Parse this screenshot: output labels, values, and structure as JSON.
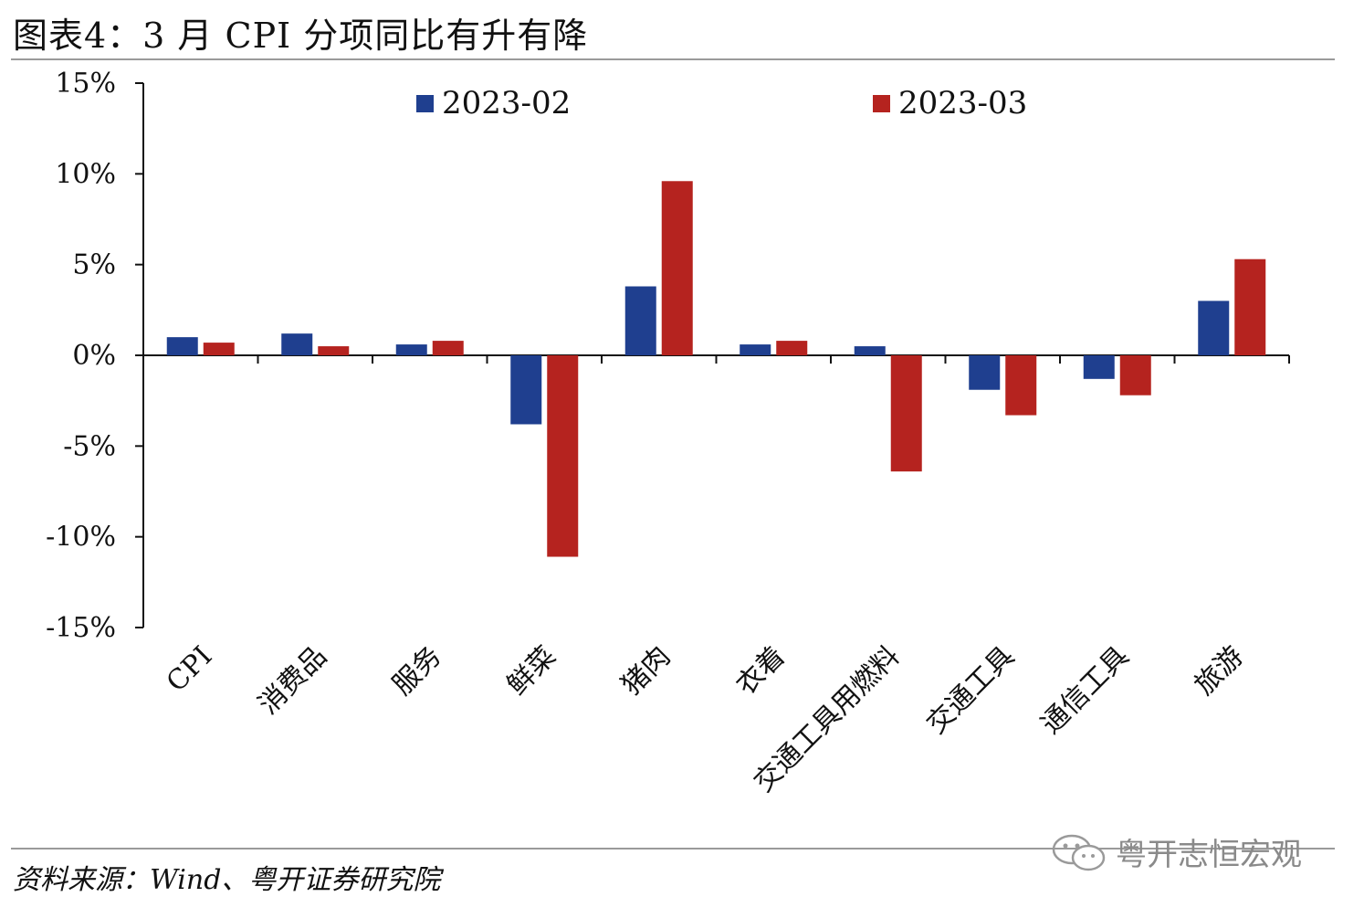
{
  "header": {
    "title": "图表4：3 月 CPI 分项同比有升有降"
  },
  "footer": {
    "source": "资料来源：Wind、粤开证券研究院"
  },
  "watermark": {
    "text": "粤开志恒宏观",
    "icon": "wechat-icon"
  },
  "colors": {
    "series_1": "#1f3f8f",
    "series_2": "#b5231f",
    "axis": "#111111",
    "rule": "#9a9a9a"
  },
  "chart_data": {
    "type": "bar",
    "title": "3 月 CPI 分项同比有升有降",
    "xlabel": "",
    "ylabel": "",
    "ylim": [
      -15,
      15
    ],
    "yticks": [
      15,
      10,
      5,
      0,
      -5,
      -10,
      -15
    ],
    "ytick_labels": [
      "15%",
      "10%",
      "5%",
      "0%",
      "-5%",
      "-10%",
      "-15%"
    ],
    "categories": [
      "CPI",
      "消费品",
      "服务",
      "鲜菜",
      "猪肉",
      "衣着",
      "交通工具用燃料",
      "交通工具",
      "通信工具",
      "旅游"
    ],
    "series": [
      {
        "name": "2023-02",
        "values": [
          1.0,
          1.2,
          0.6,
          -3.8,
          3.8,
          0.6,
          0.5,
          -1.9,
          -1.3,
          3.0
        ]
      },
      {
        "name": "2023-03",
        "values": [
          0.7,
          0.5,
          0.8,
          -11.1,
          9.6,
          0.8,
          -6.4,
          -3.3,
          -2.2,
          5.3
        ]
      }
    ],
    "legend": "top"
  }
}
